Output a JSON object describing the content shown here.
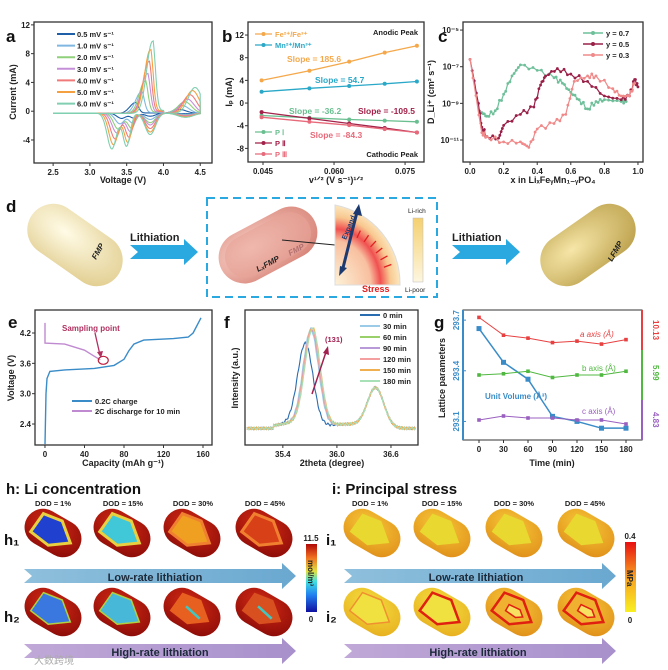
{
  "panel_a": {
    "label": "a",
    "xlabel": "Voltage (V)",
    "ylabel": "Current (mA)",
    "xticks": [
      2.5,
      3.0,
      3.5,
      4.0,
      4.5
    ],
    "yticks": [
      -4,
      0,
      4,
      8,
      12
    ],
    "legend": [
      {
        "name": "0.5 mV s⁻¹",
        "color": "#1f5fa8"
      },
      {
        "name": "1.0 mV s⁻¹",
        "color": "#7fb7e0"
      },
      {
        "name": "2.0 mV s⁻¹",
        "color": "#8fd07a"
      },
      {
        "name": "3.0 mV s⁻¹",
        "color": "#c58fd8"
      },
      {
        "name": "4.0 mV s⁻¹",
        "color": "#f07a7a"
      },
      {
        "name": "5.0 mV s⁻¹",
        "color": "#f5a040"
      },
      {
        "name": "6.0 mV s⁻¹",
        "color": "#7fcfb0"
      }
    ],
    "anodic_peak_mA": [
      1.5,
      3.0,
      4.5,
      5.5,
      7.2,
      8.8,
      10.0
    ],
    "anodic_peak_V": [
      3.62,
      3.7,
      3.75,
      3.78,
      3.8,
      3.82,
      3.85
    ]
  },
  "panel_b": {
    "label": "b",
    "xlabel": "v¹ᐟ² (V s⁻¹)¹ᐟ²",
    "ylabel": "Iₚ (mA)",
    "xticks": [
      0.045,
      0.06,
      0.075
    ],
    "yticks": [
      -8,
      -4,
      0,
      4,
      8,
      12
    ],
    "anodic_title": "Anodic Peak",
    "cathodic_title": "Cathodic Peak",
    "x": [
      0.0447,
      0.0548,
      0.0632,
      0.0707,
      0.0775
    ],
    "series": [
      {
        "name": "Fe²⁺/Fe³⁺",
        "color": "#f5a84a",
        "values": [
          4.0,
          5.7,
          7.3,
          8.9,
          10.1
        ],
        "slope": "Slope = 185.6"
      },
      {
        "name": "Mn²⁺/Mn³⁺",
        "color": "#2aa8c8",
        "values": [
          2.0,
          2.6,
          3.0,
          3.4,
          3.8
        ],
        "slope": "Slope = 54.7"
      },
      {
        "name": "P Ⅰ",
        "color": "#6abf90",
        "values": [
          -2.2,
          -2.6,
          -2.9,
          -3.1,
          -3.3
        ],
        "slope": "Slope = -36.2"
      },
      {
        "name": "P Ⅱ",
        "color": "#a3224a",
        "values": [
          -1.6,
          -2.7,
          -3.6,
          -4.4,
          -5.2
        ],
        "slope": "Slope = -109.5"
      },
      {
        "name": "P Ⅲ",
        "color": "#e86a7a",
        "values": [
          -2.5,
          -3.3,
          -3.9,
          -4.6,
          -5.2
        ],
        "slope": "Slope = -84.3"
      }
    ]
  },
  "panel_c": {
    "label": "c",
    "xlabel": "x in LiₓFeᵧMn₁₋ᵧPO₄",
    "ylabel": "D_Li⁺ (cm² s⁻¹)",
    "xticks": [
      0.0,
      0.2,
      0.4,
      0.6,
      0.8,
      1.0
    ],
    "yticks": [
      "10⁻⁵",
      "10⁻⁷",
      "10⁻⁹",
      "10⁻¹¹"
    ],
    "ytick_exp": [
      -5,
      -7,
      -9,
      -11
    ],
    "series": [
      {
        "name": "y = 0.7",
        "color": "#6fc09a",
        "points": [
          [
            0.07,
            -9.5
          ],
          [
            0.1,
            -9.7
          ],
          [
            0.15,
            -9.4
          ],
          [
            0.2,
            -8.5
          ],
          [
            0.25,
            -7.5
          ],
          [
            0.3,
            -6.9
          ],
          [
            0.4,
            -7.2
          ],
          [
            0.5,
            -7.6
          ],
          [
            0.55,
            -7.9
          ],
          [
            0.6,
            -8.4
          ],
          [
            0.65,
            -8.8
          ],
          [
            0.7,
            -9.3
          ],
          [
            0.75,
            -8.9
          ],
          [
            0.8,
            -8.8
          ],
          [
            0.9,
            -8.9
          ],
          [
            0.93,
            -8.9
          ]
        ]
      },
      {
        "name": "y = 0.5",
        "color": "#9a2048",
        "points": [
          [
            0,
            -6.6
          ],
          [
            0.05,
            -9
          ],
          [
            0.07,
            -10.3
          ],
          [
            0.1,
            -10.8
          ],
          [
            0.17,
            -10.9
          ],
          [
            0.2,
            -10.2
          ],
          [
            0.3,
            -9.6
          ],
          [
            0.38,
            -9.2
          ],
          [
            0.42,
            -8
          ],
          [
            0.45,
            -7.5
          ],
          [
            0.52,
            -7.1
          ],
          [
            0.6,
            -7.4
          ],
          [
            0.7,
            -7.8
          ],
          [
            0.8,
            -8.6
          ],
          [
            0.9,
            -8.8
          ],
          [
            0.95,
            -8.6
          ],
          [
            0.98,
            -7.7
          ],
          [
            1.0,
            -8.1
          ]
        ]
      },
      {
        "name": "y = 0.3",
        "color": "#f08a8a",
        "points": [
          [
            0,
            -6.6
          ],
          [
            0.07,
            -10.6
          ],
          [
            0.1,
            -10.8
          ],
          [
            0.2,
            -11.1
          ],
          [
            0.3,
            -11.1
          ],
          [
            0.35,
            -11.4
          ],
          [
            0.4,
            -10.4
          ],
          [
            0.5,
            -10.1
          ],
          [
            0.57,
            -9.6
          ],
          [
            0.62,
            -7.8
          ],
          [
            0.7,
            -7.5
          ],
          [
            0.75,
            -7.5
          ],
          [
            0.85,
            -8.2
          ],
          [
            0.9,
            -8.6
          ],
          [
            0.95,
            -8.6
          ],
          [
            0.98,
            -7.9
          ]
        ]
      }
    ]
  },
  "panel_d": {
    "label": "d",
    "arrow1": "Lithiation",
    "arrow2": "Lithiation",
    "particle1": "FMP",
    "particle2_core": "LₓFMP",
    "particle2_shell": "FMP",
    "particle3": "LFMP",
    "expand": "Expand",
    "stress": "Stress",
    "li_rich": "Li-rich",
    "li_poor": "Li-poor",
    "accent": "#2aa8e0"
  },
  "panel_e": {
    "label": "e",
    "xlabel": "Capacity (mAh g⁻¹)",
    "ylabel": "Voltage (V)",
    "xticks": [
      0,
      40,
      80,
      120,
      160
    ],
    "yticks": [
      2.4,
      3.0,
      3.6,
      4.2
    ],
    "annotation": "Sampling point",
    "series": [
      {
        "name": "0.2C charge",
        "color": "#3a8cc8",
        "points": [
          [
            0,
            2.0
          ],
          [
            1,
            3.0
          ],
          [
            2,
            3.3
          ],
          [
            5,
            3.44
          ],
          [
            20,
            3.47
          ],
          [
            50,
            3.5
          ],
          [
            70,
            3.56
          ],
          [
            80,
            3.68
          ],
          [
            85,
            3.85
          ],
          [
            90,
            3.98
          ],
          [
            100,
            4.06
          ],
          [
            130,
            4.09
          ],
          [
            145,
            4.12
          ],
          [
            150,
            4.2
          ],
          [
            158,
            4.5
          ]
        ]
      },
      {
        "name": "2C discharge for 10 min",
        "color": "#c08ad0",
        "points": [
          [
            0,
            4.4
          ],
          [
            0,
            4.0
          ],
          [
            20,
            3.98
          ],
          [
            40,
            3.86
          ],
          [
            50,
            3.74
          ],
          [
            56,
            3.67
          ]
        ]
      }
    ],
    "sampling_point": [
      57,
      3.66
    ]
  },
  "panel_f": {
    "label": "f",
    "xlabel": "2theta (degree)",
    "ylabel": "Intensity (a.u.)",
    "xticks": [
      35.4,
      36.0,
      36.6
    ],
    "peak_label": "(131)",
    "times": [
      {
        "name": "0 min",
        "color": "#2a6cb0",
        "peak1_deg": 35.65,
        "peak1_height": 0.78
      },
      {
        "name": "30 min",
        "color": "#9ccbe8",
        "peak1_deg": 35.71,
        "peak1_height": 0.92
      },
      {
        "name": "60 min",
        "color": "#9ad06a",
        "peak1_deg": 35.72,
        "peak1_height": 0.93
      },
      {
        "name": "90 min",
        "color": "#b89ad8",
        "peak1_deg": 35.72,
        "peak1_height": 0.92
      },
      {
        "name": "120 min",
        "color": "#f5a0a0",
        "peak1_deg": 35.72,
        "peak1_height": 0.93
      },
      {
        "name": "150 min",
        "color": "#f0b050",
        "peak1_deg": 35.73,
        "peak1_height": 0.94
      },
      {
        "name": "180 min",
        "color": "#a8e0b8",
        "peak1_deg": 35.73,
        "peak1_height": 0.93
      }
    ],
    "peak2_deg": 36.43,
    "peak2_height": 0.38
  },
  "panel_g": {
    "label": "g",
    "xlabel": "Time (min)",
    "ylabel": "Lattice parameters",
    "xticks": [
      0,
      30,
      60,
      90,
      120,
      150,
      180
    ],
    "left_ticks": [
      293.1,
      293.4,
      293.7
    ],
    "right_labels": {
      "a": "10.13",
      "b": "5.99",
      "c": "4.83"
    },
    "time": [
      0,
      30,
      60,
      90,
      120,
      150,
      180
    ],
    "series": [
      {
        "key": "volume",
        "name": "Unit Volume (Å³)",
        "color": "#3a8cc8",
        "values": [
          293.65,
          293.45,
          293.35,
          293.13,
          293.1,
          293.06,
          293.06
        ]
      },
      {
        "key": "a",
        "name": "a axis (Å)",
        "color": "#e84040",
        "values": [
          10.14,
          10.128,
          10.126,
          10.123,
          10.124,
          10.122,
          10.125
        ]
      },
      {
        "key": "b",
        "name": "b axis (Å)",
        "color": "#50b840",
        "values": [
          5.99,
          5.991,
          5.993,
          5.988,
          5.99,
          5.99,
          5.993
        ]
      },
      {
        "key": "c",
        "name": "c axis (Å)",
        "color": "#9a60c0",
        "values": [
          4.83,
          4.832,
          4.831,
          4.831,
          4.83,
          4.83,
          4.828
        ]
      }
    ]
  },
  "panel_h": {
    "title": "h: Li concentration",
    "row1": "h₁",
    "row2": "h₂",
    "dod": [
      "DOD = 1%",
      "DOD = 15%",
      "DOD = 30%",
      "DOD = 45%"
    ],
    "arrow1": "Low-rate lithiation",
    "arrow2": "High-rate lithiation",
    "colorbar_max": "11.5",
    "colorbar_min": "0",
    "unit": "mol/m³",
    "row1_core": [
      "#2040d0",
      "#40c8d8",
      "#f0a020",
      "#d84018"
    ],
    "row2_core": [
      "#3a78e0",
      "#48b8d8",
      "#e86020",
      "#d85020"
    ]
  },
  "panel_i": {
    "title": "i: Principal stress",
    "row1": "i₁",
    "row2": "i₂",
    "dod": [
      "DOD = 1%",
      "DOD = 15%",
      "DOD = 30%",
      "DOD = 45%"
    ],
    "arrow1": "Low-rate lithiation",
    "arrow2": "High-rate lithiation",
    "colorbar_max": "0.4",
    "colorbar_min": "0",
    "unit": "MPa"
  },
  "watermark": "大数跨境"
}
